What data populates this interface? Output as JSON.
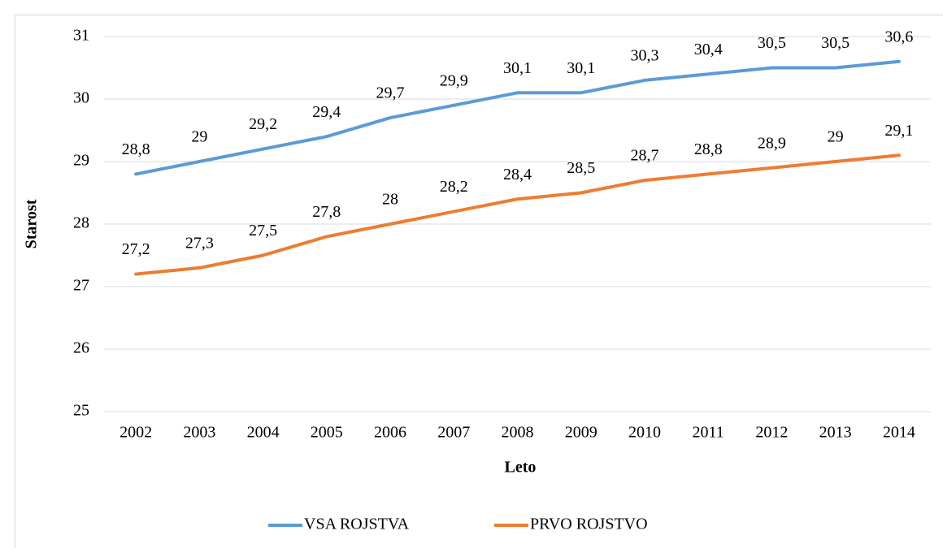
{
  "chart_data": {
    "type": "line",
    "x_label": "Leto",
    "y_label": "Starost",
    "categories": [
      "2002",
      "2003",
      "2004",
      "2005",
      "2006",
      "2007",
      "2008",
      "2009",
      "2010",
      "2011",
      "2012",
      "2013",
      "2014"
    ],
    "series": [
      {
        "name": "VSA ROJSTVA",
        "color": "#5b9bd5",
        "values": [
          28.8,
          29,
          29.2,
          29.4,
          29.7,
          29.9,
          30.1,
          30.1,
          30.3,
          30.4,
          30.5,
          30.5,
          30.6
        ],
        "value_labels": [
          "28,8",
          "29",
          "29,2",
          "29,4",
          "29,7",
          "29,9",
          "30,1",
          "30,1",
          "30,3",
          "30,4",
          "30,5",
          "30,5",
          "30,6"
        ]
      },
      {
        "name": "PRVO ROJSTVO",
        "color": "#ed7d31",
        "values": [
          27.2,
          27.3,
          27.5,
          27.8,
          28,
          28.2,
          28.4,
          28.5,
          28.7,
          28.8,
          28.9,
          29,
          29.1
        ],
        "value_labels": [
          "27,2",
          "27,3",
          "27,5",
          "27,8",
          "28",
          "28,2",
          "28,4",
          "28,5",
          "28,7",
          "28,8",
          "28,9",
          "29",
          "29,1"
        ]
      }
    ],
    "ylim": [
      25,
      31
    ],
    "yticks": [
      25,
      26,
      27,
      28,
      29,
      30,
      31
    ],
    "grid": true,
    "legend": "bottom"
  }
}
